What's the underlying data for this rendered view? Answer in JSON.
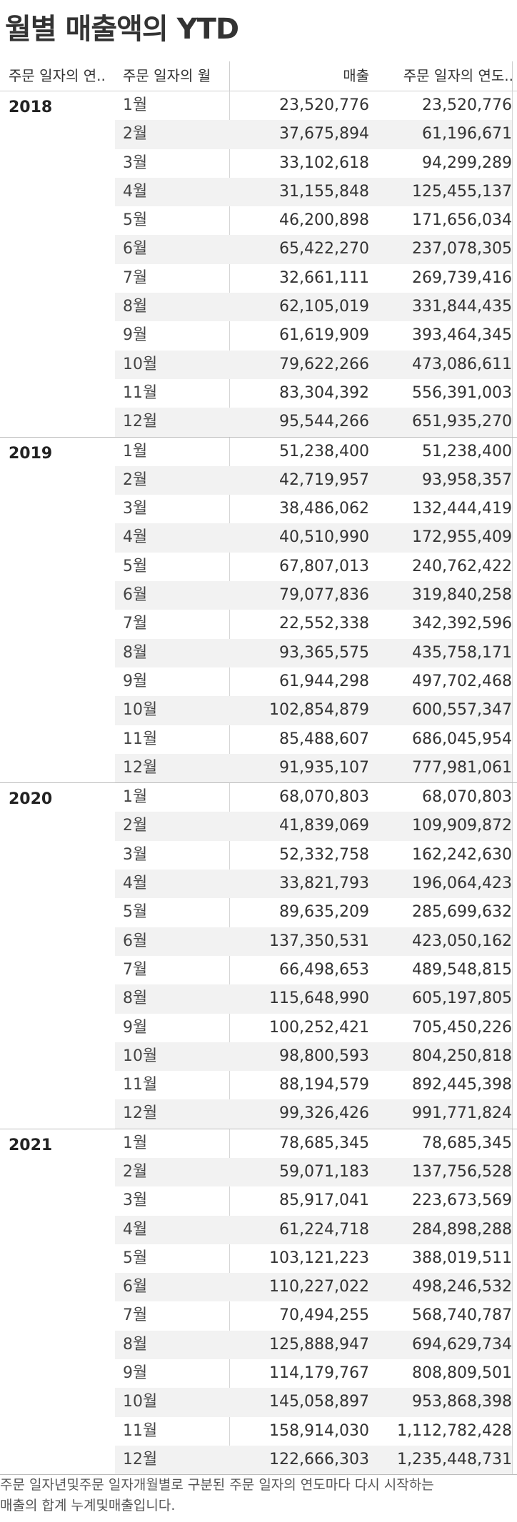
{
  "title": "월별 매출액의 YTD",
  "headers": {
    "year": "주문 일자의 연..",
    "month": "주문 일자의 월",
    "sales": "매출",
    "ytd": "주문 일자의 연도.."
  },
  "groups": [
    {
      "year": "2018",
      "rows": [
        {
          "month": "1월",
          "sales": "23,520,776",
          "ytd": "23,520,776"
        },
        {
          "month": "2월",
          "sales": "37,675,894",
          "ytd": "61,196,671"
        },
        {
          "month": "3월",
          "sales": "33,102,618",
          "ytd": "94,299,289"
        },
        {
          "month": "4월",
          "sales": "31,155,848",
          "ytd": "125,455,137"
        },
        {
          "month": "5월",
          "sales": "46,200,898",
          "ytd": "171,656,034"
        },
        {
          "month": "6월",
          "sales": "65,422,270",
          "ytd": "237,078,305"
        },
        {
          "month": "7월",
          "sales": "32,661,111",
          "ytd": "269,739,416"
        },
        {
          "month": "8월",
          "sales": "62,105,019",
          "ytd": "331,844,435"
        },
        {
          "month": "9월",
          "sales": "61,619,909",
          "ytd": "393,464,345"
        },
        {
          "month": "10월",
          "sales": "79,622,266",
          "ytd": "473,086,611"
        },
        {
          "month": "11월",
          "sales": "83,304,392",
          "ytd": "556,391,003"
        },
        {
          "month": "12월",
          "sales": "95,544,266",
          "ytd": "651,935,270"
        }
      ]
    },
    {
      "year": "2019",
      "rows": [
        {
          "month": "1월",
          "sales": "51,238,400",
          "ytd": "51,238,400"
        },
        {
          "month": "2월",
          "sales": "42,719,957",
          "ytd": "93,958,357"
        },
        {
          "month": "3월",
          "sales": "38,486,062",
          "ytd": "132,444,419"
        },
        {
          "month": "4월",
          "sales": "40,510,990",
          "ytd": "172,955,409"
        },
        {
          "month": "5월",
          "sales": "67,807,013",
          "ytd": "240,762,422"
        },
        {
          "month": "6월",
          "sales": "79,077,836",
          "ytd": "319,840,258"
        },
        {
          "month": "7월",
          "sales": "22,552,338",
          "ytd": "342,392,596"
        },
        {
          "month": "8월",
          "sales": "93,365,575",
          "ytd": "435,758,171"
        },
        {
          "month": "9월",
          "sales": "61,944,298",
          "ytd": "497,702,468"
        },
        {
          "month": "10월",
          "sales": "102,854,879",
          "ytd": "600,557,347"
        },
        {
          "month": "11월",
          "sales": "85,488,607",
          "ytd": "686,045,954"
        },
        {
          "month": "12월",
          "sales": "91,935,107",
          "ytd": "777,981,061"
        }
      ]
    },
    {
      "year": "2020",
      "rows": [
        {
          "month": "1월",
          "sales": "68,070,803",
          "ytd": "68,070,803"
        },
        {
          "month": "2월",
          "sales": "41,839,069",
          "ytd": "109,909,872"
        },
        {
          "month": "3월",
          "sales": "52,332,758",
          "ytd": "162,242,630"
        },
        {
          "month": "4월",
          "sales": "33,821,793",
          "ytd": "196,064,423"
        },
        {
          "month": "5월",
          "sales": "89,635,209",
          "ytd": "285,699,632"
        },
        {
          "month": "6월",
          "sales": "137,350,531",
          "ytd": "423,050,162"
        },
        {
          "month": "7월",
          "sales": "66,498,653",
          "ytd": "489,548,815"
        },
        {
          "month": "8월",
          "sales": "115,648,990",
          "ytd": "605,197,805"
        },
        {
          "month": "9월",
          "sales": "100,252,421",
          "ytd": "705,450,226"
        },
        {
          "month": "10월",
          "sales": "98,800,593",
          "ytd": "804,250,818"
        },
        {
          "month": "11월",
          "sales": "88,194,579",
          "ytd": "892,445,398"
        },
        {
          "month": "12월",
          "sales": "99,326,426",
          "ytd": "991,771,824"
        }
      ]
    },
    {
      "year": "2021",
      "rows": [
        {
          "month": "1월",
          "sales": "78,685,345",
          "ytd": "78,685,345"
        },
        {
          "month": "2월",
          "sales": "59,071,183",
          "ytd": "137,756,528"
        },
        {
          "month": "3월",
          "sales": "85,917,041",
          "ytd": "223,673,569"
        },
        {
          "month": "4월",
          "sales": "61,224,718",
          "ytd": "284,898,288"
        },
        {
          "month": "5월",
          "sales": "103,121,223",
          "ytd": "388,019,511"
        },
        {
          "month": "6월",
          "sales": "110,227,022",
          "ytd": "498,246,532"
        },
        {
          "month": "7월",
          "sales": "70,494,255",
          "ytd": "568,740,787"
        },
        {
          "month": "8월",
          "sales": "125,888,947",
          "ytd": "694,629,734"
        },
        {
          "month": "9월",
          "sales": "114,179,767",
          "ytd": "808,809,501"
        },
        {
          "month": "10월",
          "sales": "145,058,897",
          "ytd": "953,868,398"
        },
        {
          "month": "11월",
          "sales": "158,914,030",
          "ytd": "1,112,782,428"
        },
        {
          "month": "12월",
          "sales": "122,666,303",
          "ytd": "1,235,448,731"
        }
      ]
    }
  ],
  "footnote": {
    "line1": "주문 일자년및주문 일자개월별로 구분된 주문 일자의 연도마다 다시 시작하는",
    "line2": "매출의 합계 누계및매출입니다."
  }
}
